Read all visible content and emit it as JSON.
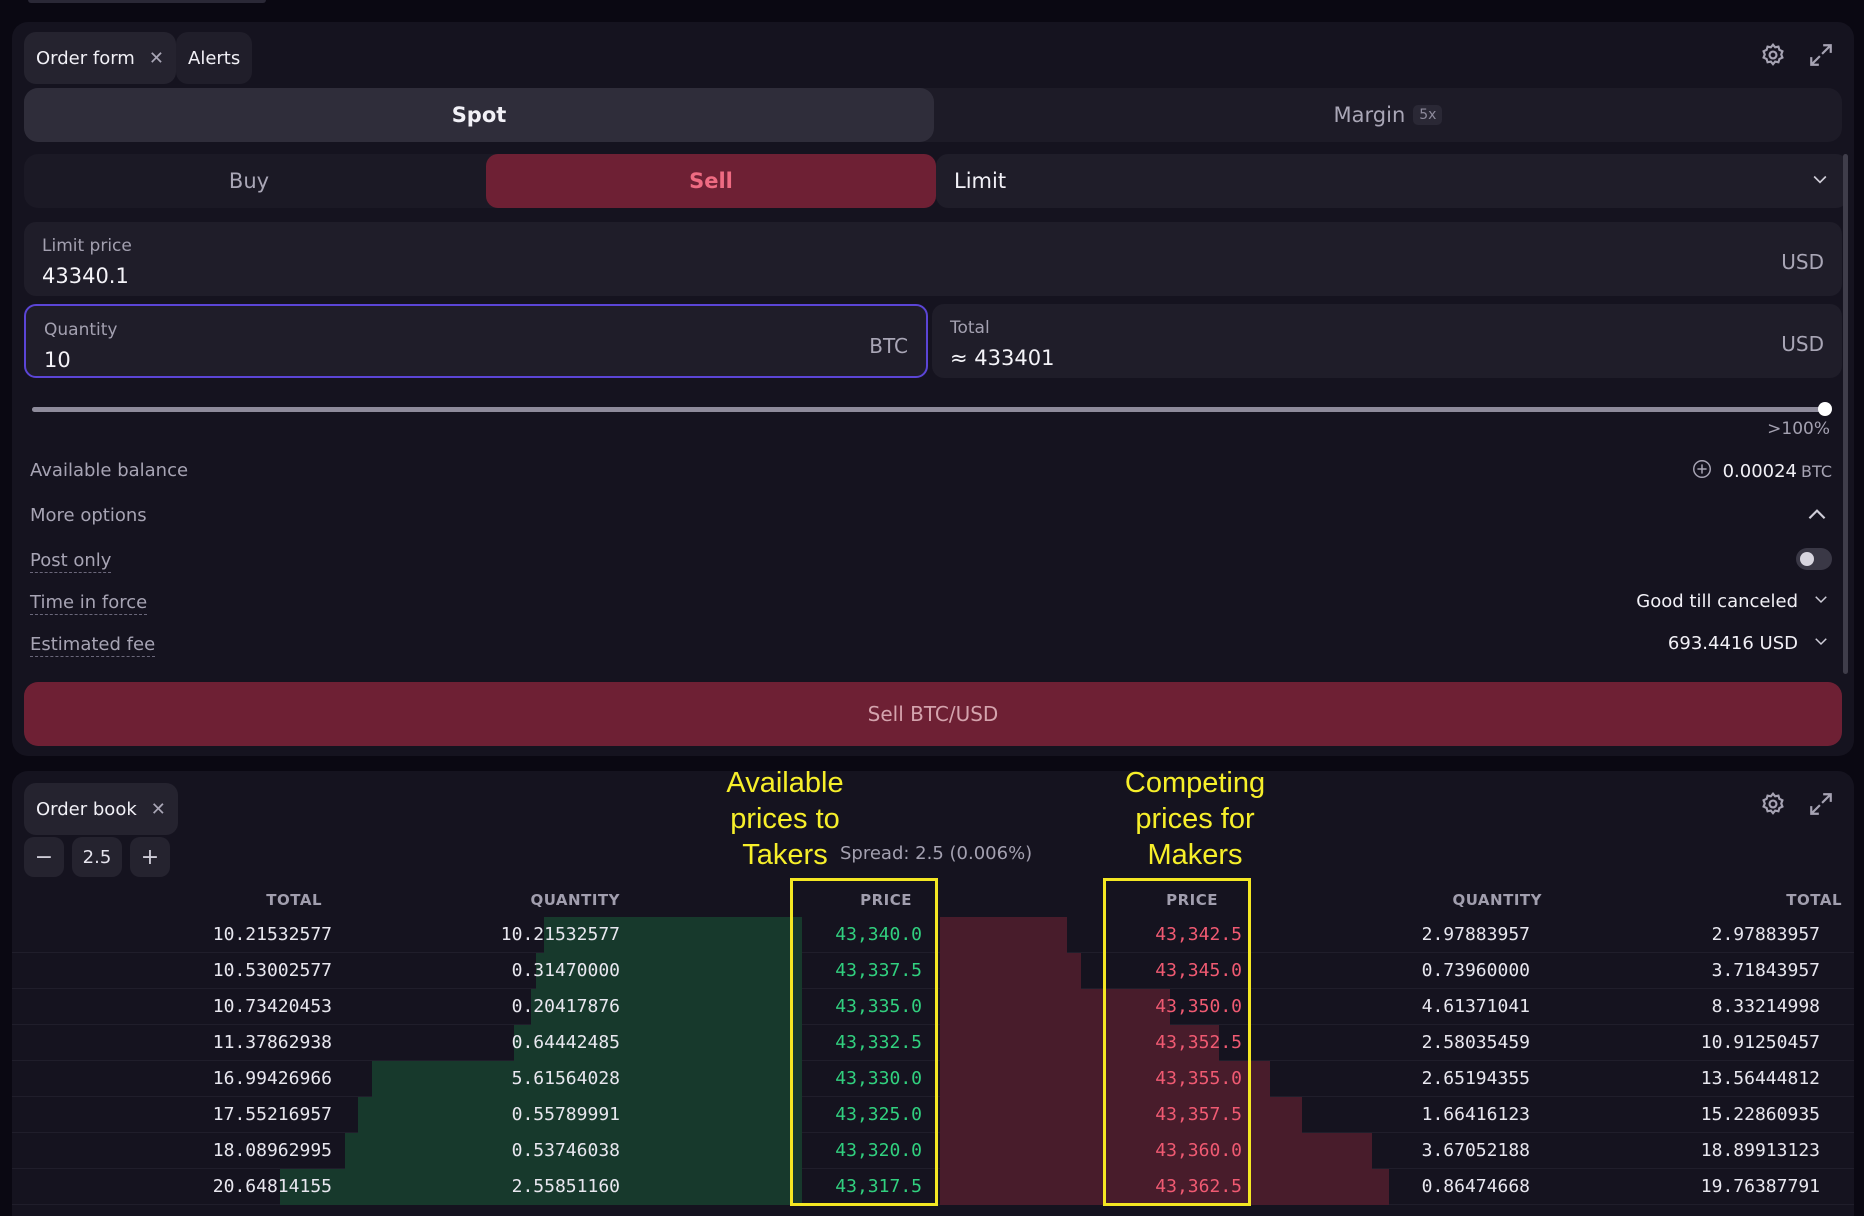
{
  "order_panel": {
    "tabs": [
      {
        "label": "Order form",
        "closable": true
      },
      {
        "label": "Alerts",
        "closable": false
      }
    ],
    "market_types": {
      "spot": "Spot",
      "margin": "Margin",
      "margin_badge": "5x"
    },
    "sides": {
      "buy": "Buy",
      "sell": "Sell",
      "selected": "Sell"
    },
    "order_type": "Limit",
    "limit_price": {
      "label": "Limit price",
      "value": "43340.1",
      "unit": "USD"
    },
    "quantity": {
      "label": "Quantity",
      "value": "10",
      "unit": "BTC"
    },
    "total": {
      "label": "Total",
      "value": "≈ 433401",
      "unit": "USD"
    },
    "slider": {
      "label": ">100%",
      "level": 1.0
    },
    "available_balance": {
      "label": "Available balance",
      "value": "0.00024",
      "unit": "BTC"
    },
    "more_options": {
      "label": "More options",
      "expanded": true
    },
    "post_only": {
      "label": "Post only",
      "enabled": false
    },
    "time_in_force": {
      "label": "Time in force",
      "value": "Good till canceled"
    },
    "estimated_fee": {
      "label": "Estimated fee",
      "value": "693.4416 USD"
    },
    "submit_label": "Sell BTC/USD",
    "colors": {
      "sell": "#6e2034",
      "focus": "#5b45d6"
    }
  },
  "order_book": {
    "tab_label": "Order book",
    "increment": "2.5",
    "spread": "Spread: 2.5 (0.006%)",
    "annotations": {
      "takers": [
        "Available",
        "prices to",
        "Takers"
      ],
      "makers": [
        "Competing",
        "prices for",
        "Makers"
      ]
    },
    "headers": {
      "bid_total": "TOTAL",
      "bid_quantity": "QUANTITY",
      "bid_price": "PRICE",
      "ask_price": "PRICE",
      "ask_quantity": "QUANTITY",
      "ask_total": "TOTAL"
    },
    "bids": [
      {
        "total": "10.21532577",
        "quantity": "10.21532577",
        "price": "43,340.0"
      },
      {
        "total": "10.53002577",
        "quantity": "0.31470000",
        "price": "43,337.5"
      },
      {
        "total": "10.73420453",
        "quantity": "0.20417876",
        "price": "43,335.0"
      },
      {
        "total": "11.37862938",
        "quantity": "0.64442485",
        "price": "43,332.5"
      },
      {
        "total": "16.99426966",
        "quantity": "5.61564028",
        "price": "43,330.0"
      },
      {
        "total": "17.55216957",
        "quantity": "0.55789991",
        "price": "43,325.0"
      },
      {
        "total": "18.08962995",
        "quantity": "0.53746038",
        "price": "43,320.0"
      },
      {
        "total": "20.64814155",
        "quantity": "2.55851160",
        "price": "43,317.5"
      }
    ],
    "asks": [
      {
        "price": "43,342.5",
        "quantity": "2.97883957",
        "total": "2.97883957"
      },
      {
        "price": "43,345.0",
        "quantity": "0.73960000",
        "total": "3.71843957"
      },
      {
        "price": "43,350.0",
        "quantity": "4.61371041",
        "total": "8.33214998"
      },
      {
        "price": "43,352.5",
        "quantity": "2.58035459",
        "total": "10.91250457"
      },
      {
        "price": "43,355.0",
        "quantity": "2.65194355",
        "total": "13.56444812"
      },
      {
        "price": "43,357.5",
        "quantity": "1.66416123",
        "total": "15.22860935"
      },
      {
        "price": "43,360.0",
        "quantity": "3.67052188",
        "total": "18.89913123"
      },
      {
        "price": "43,362.5",
        "quantity": "0.86474668",
        "total": "19.76387791"
      }
    ],
    "colors": {
      "bid": "#31d07f",
      "ask": "#f05a72",
      "highlight": "#f4e723"
    }
  }
}
